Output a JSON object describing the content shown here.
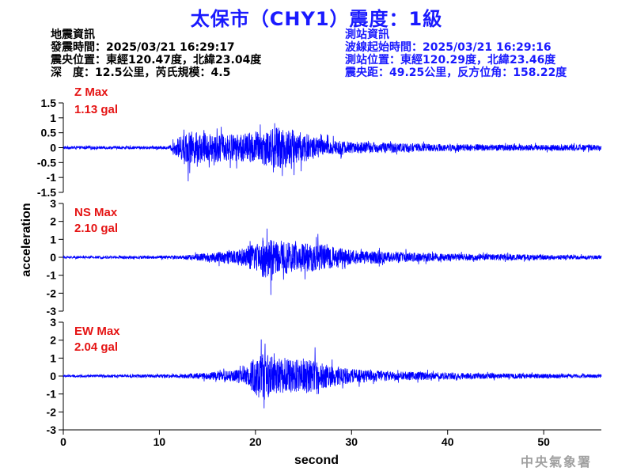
{
  "title": "太保市（CHY1）震度：1級",
  "event_info": [
    "地震資訊",
    "發震時間：2025/03/21 16:29:17",
    "震央位置：東經120.47度，北緯23.04度",
    "深　度：12.5公里，芮氏規模：4.5"
  ],
  "station_info": [
    "測站資訊",
    "波線起始時間：2025/03/21 16:29:16",
    "測站位置：東經120.29度，北緯23.46度",
    "震央距：49.25公里，反方位角：158.22度"
  ],
  "footer": "中央氣象署",
  "colors": {
    "trace": "#0000ff",
    "title": "#1a1aff",
    "max_label": "#e51414"
  },
  "chart_data": {
    "type": "line",
    "xlabel": "second",
    "ylabel": "acceleration",
    "xlim": [
      0,
      56
    ],
    "xticks": [
      0,
      10,
      20,
      30,
      40,
      50
    ],
    "grid": false,
    "series": [
      {
        "component": "Z",
        "max_label": "Z Max",
        "max_value": "1.13 gal",
        "ylim": [
          -1.5,
          1.5
        ],
        "yticks": [
          -1.5,
          -1,
          -0.5,
          0,
          0.5,
          1,
          1.5
        ],
        "envelope": [
          [
            0,
            0.05
          ],
          [
            11,
            0.05
          ],
          [
            12,
            0.35
          ],
          [
            13,
            0.55
          ],
          [
            15,
            0.5
          ],
          [
            18,
            0.45
          ],
          [
            20,
            0.55
          ],
          [
            21,
            0.6
          ],
          [
            22,
            0.7
          ],
          [
            23,
            0.7
          ],
          [
            25,
            0.5
          ],
          [
            27,
            0.3
          ],
          [
            30,
            0.2
          ],
          [
            40,
            0.12
          ],
          [
            50,
            0.1
          ],
          [
            56,
            0.1
          ]
        ],
        "peaks": [
          [
            13.0,
            -1.13
          ],
          [
            22.0,
            0.82
          ],
          [
            22.8,
            -0.95
          ]
        ]
      },
      {
        "component": "NS",
        "max_label": "NS Max",
        "max_value": "2.10 gal",
        "ylim": [
          -3,
          3
        ],
        "yticks": [
          -3,
          -2,
          -1,
          0,
          1,
          2,
          3
        ],
        "envelope": [
          [
            0,
            0.06
          ],
          [
            12,
            0.1
          ],
          [
            14,
            0.2
          ],
          [
            18,
            0.4
          ],
          [
            20,
            0.8
          ],
          [
            21,
            1.2
          ],
          [
            22,
            1.0
          ],
          [
            24,
            0.8
          ],
          [
            26,
            0.8
          ],
          [
            28,
            0.6
          ],
          [
            30,
            0.4
          ],
          [
            35,
            0.3
          ],
          [
            40,
            0.2
          ],
          [
            50,
            0.15
          ],
          [
            56,
            0.1
          ]
        ],
        "peaks": [
          [
            21.2,
            1.6
          ],
          [
            21.6,
            -2.1
          ],
          [
            26.5,
            1.3
          ]
        ]
      },
      {
        "component": "EW",
        "max_label": "EW Max",
        "max_value": "2.04 gal",
        "ylim": [
          -3,
          3
        ],
        "yticks": [
          -3,
          -2,
          -1,
          0,
          1,
          2,
          3
        ],
        "envelope": [
          [
            0,
            0.06
          ],
          [
            12,
            0.1
          ],
          [
            15,
            0.2
          ],
          [
            19,
            0.4
          ],
          [
            20,
            1.1
          ],
          [
            21,
            1.4
          ],
          [
            22,
            1.0
          ],
          [
            24,
            0.9
          ],
          [
            26,
            0.9
          ],
          [
            28,
            0.6
          ],
          [
            30,
            0.4
          ],
          [
            35,
            0.25
          ],
          [
            45,
            0.15
          ],
          [
            56,
            0.1
          ]
        ],
        "peaks": [
          [
            20.6,
            2.04
          ],
          [
            20.9,
            -1.8
          ],
          [
            26.2,
            1.6
          ]
        ]
      }
    ]
  }
}
